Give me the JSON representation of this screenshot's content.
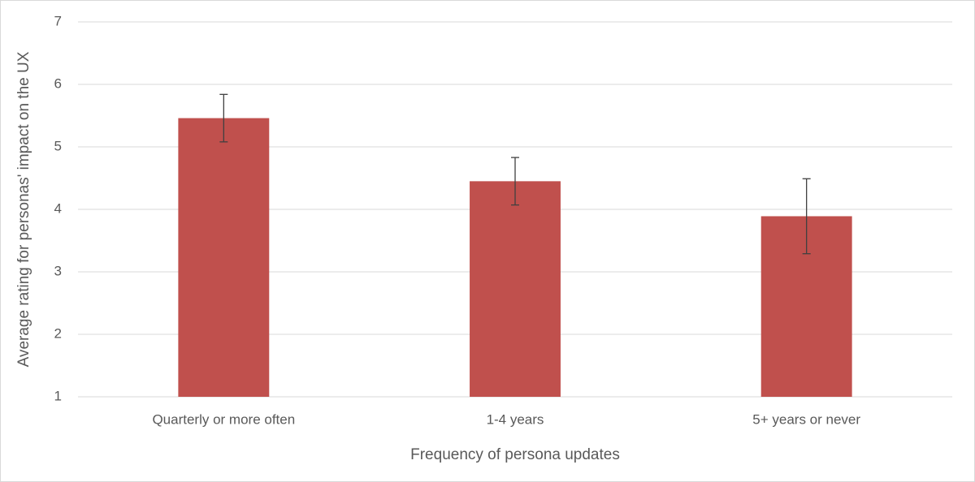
{
  "chart_data": {
    "type": "bar",
    "x_label": "Frequency of persona updates",
    "y_label": "Average rating for personas' impact on the UX",
    "categories": [
      "Quarterly or more often",
      "1-4 years",
      "5+ years or never"
    ],
    "values": [
      5.46,
      4.45,
      3.89
    ],
    "errors": [
      0.38,
      0.38,
      0.6
    ],
    "color": "#c0504d",
    "ylim": [
      1,
      7
    ],
    "yticks": [
      1,
      2,
      3,
      4,
      5,
      6,
      7
    ],
    "grid": true
  }
}
